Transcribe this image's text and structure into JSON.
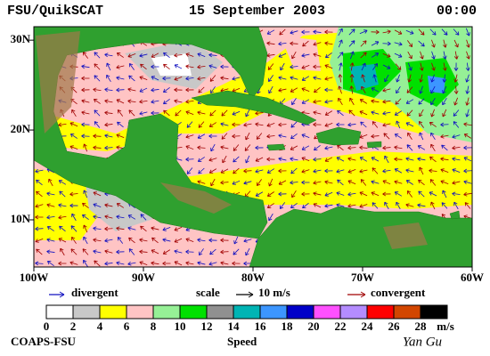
{
  "header": {
    "source": "FSU/QuikSCAT",
    "date": "15 September 2003",
    "time": "00:00"
  },
  "map": {
    "lon_range": [
      -100,
      -60
    ],
    "lat_range": [
      4.75,
      31.5
    ],
    "lon_ticks": [
      {
        "value": -100,
        "label": "100W"
      },
      {
        "value": -90,
        "label": "90W"
      },
      {
        "value": -80,
        "label": "80W"
      },
      {
        "value": -70,
        "label": "70W"
      },
      {
        "value": -60,
        "label": "60W"
      }
    ],
    "lat_ticks": [
      {
        "value": 30,
        "label": "30N"
      },
      {
        "value": 20,
        "label": "20N"
      },
      {
        "value": 10,
        "label": "10N"
      }
    ]
  },
  "legend": {
    "divergent": {
      "label": "divergent",
      "color": "#1010c0"
    },
    "scale": "scale",
    "scale_value": "10 m/s",
    "convergent": {
      "label": "convergent",
      "color": "#a00000"
    }
  },
  "colorbar": {
    "title": "Speed",
    "unit": "m/s",
    "ticks": [
      0,
      2,
      4,
      6,
      8,
      10,
      12,
      14,
      16,
      18,
      20,
      22,
      24,
      26,
      28
    ],
    "colors": [
      "#ffffff",
      "#c8c8c8",
      "#ffff00",
      "#ffc4c4",
      "#96f096",
      "#00e000",
      "#909090",
      "#00b4b4",
      "#3c96ff",
      "#0000c8",
      "#ff50ff",
      "#b48cff",
      "#ff0000",
      "#d24600",
      "#000000"
    ]
  },
  "footer": {
    "credit": "COAPS-FSU",
    "signature": "Yan Gu"
  }
}
